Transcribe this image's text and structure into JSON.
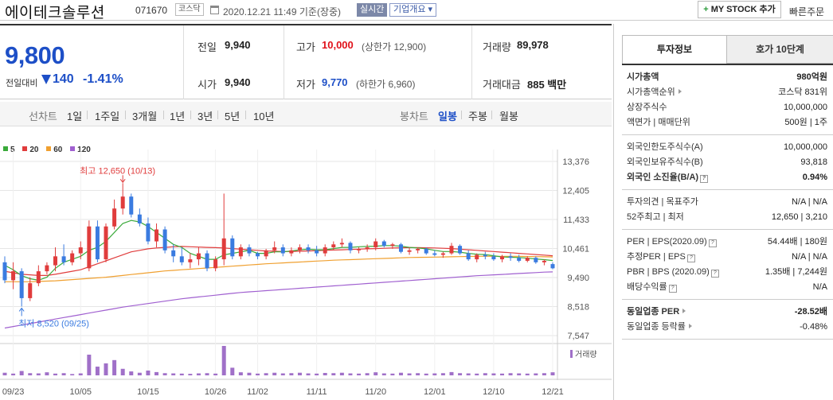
{
  "header": {
    "company_name": "에이테크솔루션",
    "code": "071670",
    "market": "코스닥",
    "timestamp": "2020.12.21 11:49 기준(장중)",
    "realtime_label": "실시간",
    "company_info_label": "기업개요 ▾",
    "mystock_label": "MY STOCK 추가",
    "quick_order_label": "빠른주문"
  },
  "price": {
    "current": "9,800",
    "vs_label": "전일대비",
    "change": "140",
    "change_rate": "-1.41%",
    "prev_label": "전일",
    "prev": "9,940",
    "high_label": "고가",
    "high": "10,000",
    "upper_limit": "(상한가 12,900)",
    "volume_label": "거래량",
    "volume": "89,978",
    "open_label": "시가",
    "open": "9,940",
    "low_label": "저가",
    "low": "9,770",
    "lower_limit": "(하한가 6,960)",
    "amount_label": "거래대금",
    "amount": "885 백만"
  },
  "chart_tabs": {
    "line_label": "선차트",
    "periods": [
      "1일",
      "1주일",
      "3개월",
      "1년",
      "3년",
      "5년",
      "10년"
    ],
    "candle_label": "봉차트",
    "candle_types": [
      "일봉",
      "주봉",
      "월봉"
    ],
    "active_candle": "일봉"
  },
  "chart_data": {
    "type": "candlestick",
    "legend": [
      "5",
      "20",
      "60",
      "120"
    ],
    "legend_colors": [
      "#3aaa3a",
      "#e03c3c",
      "#f0a030",
      "#a060d0"
    ],
    "y_ticks": [
      "13,376",
      "12,405",
      "11,433",
      "10,461",
      "9,490",
      "8,518",
      "7,547"
    ],
    "ylim": [
      7547,
      13376
    ],
    "x_ticks": [
      "09/23",
      "10/05",
      "10/15",
      "10/26",
      "11/02",
      "11/11",
      "11/20",
      "12/01",
      "12/10",
      "12/21"
    ],
    "x_tick_index": [
      1,
      9,
      17,
      25,
      30,
      37,
      44,
      51,
      58,
      65
    ],
    "high_annotation": "최고 12,650 (10/13)",
    "low_annotation": "최저 8,520 (09/25)",
    "volume_label": "거래량",
    "candles": [
      [
        10000,
        10200,
        9300,
        9400
      ],
      [
        9400,
        10000,
        9100,
        9700
      ],
      [
        9700,
        9800,
        8520,
        8800
      ],
      [
        8800,
        9500,
        8700,
        9300
      ],
      [
        9300,
        9900,
        9200,
        9700
      ],
      [
        9700,
        10000,
        9600,
        9900
      ],
      [
        9900,
        10500,
        9700,
        10200
      ],
      [
        10200,
        10600,
        9900,
        10000
      ],
      [
        10000,
        10400,
        9900,
        10300
      ],
      [
        10300,
        10700,
        10100,
        10500
      ],
      [
        9800,
        11400,
        9700,
        11200
      ],
      [
        11200,
        11400,
        10000,
        10100
      ],
      [
        10100,
        11300,
        10000,
        11200
      ],
      [
        11200,
        12100,
        11100,
        11800
      ],
      [
        11800,
        12650,
        11600,
        12200
      ],
      [
        12200,
        12300,
        11500,
        11600
      ],
      [
        11600,
        11800,
        11200,
        11300
      ],
      [
        11300,
        11500,
        10600,
        10700
      ],
      [
        10700,
        11300,
        10500,
        11100
      ],
      [
        11100,
        11200,
        10300,
        10400
      ],
      [
        10400,
        10600,
        10000,
        10200
      ],
      [
        10200,
        10500,
        9900,
        10000
      ],
      [
        10000,
        10300,
        9800,
        10100
      ],
      [
        10100,
        10500,
        9900,
        10300
      ],
      [
        10300,
        10400,
        9700,
        9800
      ],
      [
        9800,
        10200,
        9700,
        10100
      ],
      [
        10100,
        12300,
        9900,
        10800
      ],
      [
        10800,
        10900,
        10100,
        10200
      ],
      [
        10200,
        10600,
        10100,
        10500
      ],
      [
        10500,
        10600,
        10200,
        10300
      ],
      [
        10300,
        10350,
        10100,
        10200
      ],
      [
        10200,
        10450,
        10100,
        10400
      ],
      [
        10400,
        10700,
        10300,
        10500
      ],
      [
        10500,
        10600,
        10200,
        10300
      ],
      [
        10300,
        10500,
        10200,
        10400
      ],
      [
        10400,
        10600,
        10300,
        10500
      ],
      [
        10500,
        10600,
        10300,
        10400
      ],
      [
        10400,
        10550,
        10200,
        10300
      ],
      [
        10300,
        10600,
        10200,
        10500
      ],
      [
        10500,
        10700,
        10400,
        10600
      ],
      [
        10600,
        10800,
        10500,
        10650
      ],
      [
        10650,
        10700,
        10300,
        10400
      ],
      [
        10400,
        10500,
        10300,
        10450
      ],
      [
        10450,
        10600,
        10350,
        10500
      ],
      [
        10500,
        10800,
        10400,
        10700
      ],
      [
        10700,
        10750,
        10500,
        10550
      ],
      [
        10550,
        10650,
        10450,
        10600
      ],
      [
        10600,
        10650,
        10300,
        10350
      ],
      [
        10350,
        10500,
        10250,
        10400
      ],
      [
        10400,
        10500,
        10300,
        10450
      ],
      [
        10450,
        10500,
        10250,
        10300
      ],
      [
        10300,
        10400,
        10200,
        10250
      ],
      [
        10250,
        10350,
        10150,
        10300
      ],
      [
        10300,
        10650,
        10250,
        10550
      ],
      [
        10550,
        10600,
        10250,
        10300
      ],
      [
        10300,
        10400,
        10050,
        10100
      ],
      [
        10100,
        10300,
        10000,
        10250
      ],
      [
        10250,
        10350,
        10100,
        10200
      ],
      [
        10200,
        10300,
        10050,
        10100
      ],
      [
        10100,
        10250,
        10000,
        10200
      ],
      [
        10200,
        10300,
        10050,
        10150
      ],
      [
        10150,
        10250,
        10000,
        10050
      ],
      [
        10050,
        10200,
        10000,
        10150
      ],
      [
        10150,
        10200,
        9950,
        10000
      ],
      [
        10000,
        10100,
        9900,
        10050
      ],
      [
        9940,
        10000,
        9770,
        9800
      ]
    ],
    "ma5": [
      9900,
      9750,
      9550,
      9450,
      9400,
      9500,
      9800,
      10000,
      10100,
      10200,
      10400,
      10500,
      10700,
      11000,
      11300,
      11400,
      11350,
      11200,
      11000,
      10800,
      10600,
      10500,
      10300,
      10200,
      10100,
      10100,
      10250,
      10300,
      10350,
      10400,
      10300,
      10300,
      10350,
      10350,
      10380,
      10420,
      10440,
      10420,
      10420,
      10460,
      10500,
      10500,
      10520,
      10530,
      10540,
      10560,
      10560,
      10540,
      10500,
      10480,
      10450,
      10400,
      10360,
      10360,
      10340,
      10300,
      10270,
      10260,
      10220,
      10180,
      10170,
      10160,
      10140,
      10110,
      10090,
      10060
    ],
    "ma20": [
      9700,
      9650,
      9600,
      9580,
      9560,
      9560,
      9600,
      9650,
      9700,
      9750,
      9850,
      9950,
      10050,
      10150,
      10250,
      10350,
      10400,
      10450,
      10480,
      10500,
      10520,
      10530,
      10520,
      10510,
      10500,
      10490,
      10480,
      10460,
      10440,
      10420,
      10400,
      10380,
      10370,
      10360,
      10360,
      10370,
      10380,
      10390,
      10400,
      10410,
      10420,
      10430,
      10440,
      10450,
      10460,
      10470,
      10480,
      10485,
      10490,
      10490,
      10485,
      10480,
      10470,
      10460,
      10440,
      10420,
      10400,
      10380,
      10360,
      10340,
      10320,
      10300,
      10280,
      10260,
      10240,
      10220
    ],
    "ma60": [
      9350,
      9350,
      9350,
      9350,
      9360,
      9370,
      9380,
      9400,
      9420,
      9440,
      9460,
      9480,
      9500,
      9530,
      9560,
      9590,
      9620,
      9650,
      9680,
      9710,
      9730,
      9750,
      9770,
      9790,
      9810,
      9830,
      9850,
      9870,
      9890,
      9910,
      9930,
      9950,
      9965,
      9980,
      9995,
      10010,
      10025,
      10040,
      10055,
      10070,
      10080,
      10090,
      10100,
      10110,
      10120,
      10130,
      10140,
      10150,
      10160,
      10165,
      10170,
      10175,
      10180,
      10185,
      10190,
      10195,
      10200,
      10200,
      10200,
      10200,
      10200,
      10200,
      10195,
      10190,
      10185,
      10180
    ],
    "ma120": [
      7800,
      7850,
      7900,
      7950,
      8000,
      8050,
      8100,
      8150,
      8200,
      8250,
      8300,
      8350,
      8400,
      8450,
      8500,
      8540,
      8580,
      8620,
      8660,
      8700,
      8740,
      8780,
      8810,
      8840,
      8870,
      8900,
      8930,
      8960,
      8990,
      9010,
      9030,
      9050,
      9070,
      9090,
      9110,
      9130,
      9150,
      9170,
      9190,
      9210,
      9230,
      9250,
      9270,
      9290,
      9310,
      9330,
      9350,
      9370,
      9390,
      9410,
      9430,
      9450,
      9470,
      9490,
      9510,
      9530,
      9550,
      9565,
      9580,
      9595,
      9610,
      9625,
      9640,
      9655,
      9670,
      9680
    ],
    "volumes": [
      12,
      8,
      20,
      10,
      9,
      14,
      8,
      10,
      6,
      9,
      95,
      40,
      55,
      70,
      30,
      18,
      12,
      22,
      15,
      10,
      9,
      8,
      7,
      9,
      10,
      8,
      135,
      35,
      14,
      12,
      8,
      10,
      12,
      9,
      10,
      12,
      9,
      8,
      11,
      10,
      12,
      9,
      8,
      10,
      14,
      9,
      8,
      12,
      9,
      10,
      8,
      9,
      10,
      15,
      10,
      9,
      8,
      10,
      9,
      8,
      10,
      9,
      8,
      9,
      10,
      14
    ]
  },
  "right": {
    "tabs": [
      "투자정보",
      "호가 10단계"
    ],
    "groups": [
      [
        {
          "k": "시가총액",
          "v": "980억원",
          "bold": true
        },
        {
          "k": "시가총액순위",
          "v": "코스닥 831위",
          "tri": true
        },
        {
          "k": "상장주식수",
          "v": "10,000,000"
        },
        {
          "k": "액면가 | 매매단위",
          "v": "500원 | 1주"
        }
      ],
      [
        {
          "k": "외국인한도주식수(A)",
          "v": "10,000,000"
        },
        {
          "k": "외국인보유주식수(B)",
          "v": "93,818"
        },
        {
          "k": "외국인 소진율(B/A)",
          "v": "0.94%",
          "bold": true,
          "q": true
        }
      ],
      [
        {
          "k": "투자의견 | 목표주가",
          "v": "N/A | N/A"
        },
        {
          "k": "52주최고 | 최저",
          "v": "12,650 | 3,210"
        }
      ],
      [
        {
          "k": "PER | EPS(2020.09)",
          "v": "54.44배 | 180원",
          "q": true
        },
        {
          "k": "추정PER | EPS",
          "v": "N/A | N/A",
          "q": true
        },
        {
          "k": "PBR | BPS (2020.09)",
          "v": "1.35배 | 7,244원",
          "q": true
        },
        {
          "k": "배당수익률",
          "v": "N/A",
          "q": true
        }
      ],
      [
        {
          "k": "동일업종 PER",
          "v": "-28.52배",
          "bold": true,
          "tri": true
        },
        {
          "k": "동일업종 등락률",
          "v": "-0.48%",
          "tri": true,
          "blue": true
        }
      ]
    ]
  }
}
